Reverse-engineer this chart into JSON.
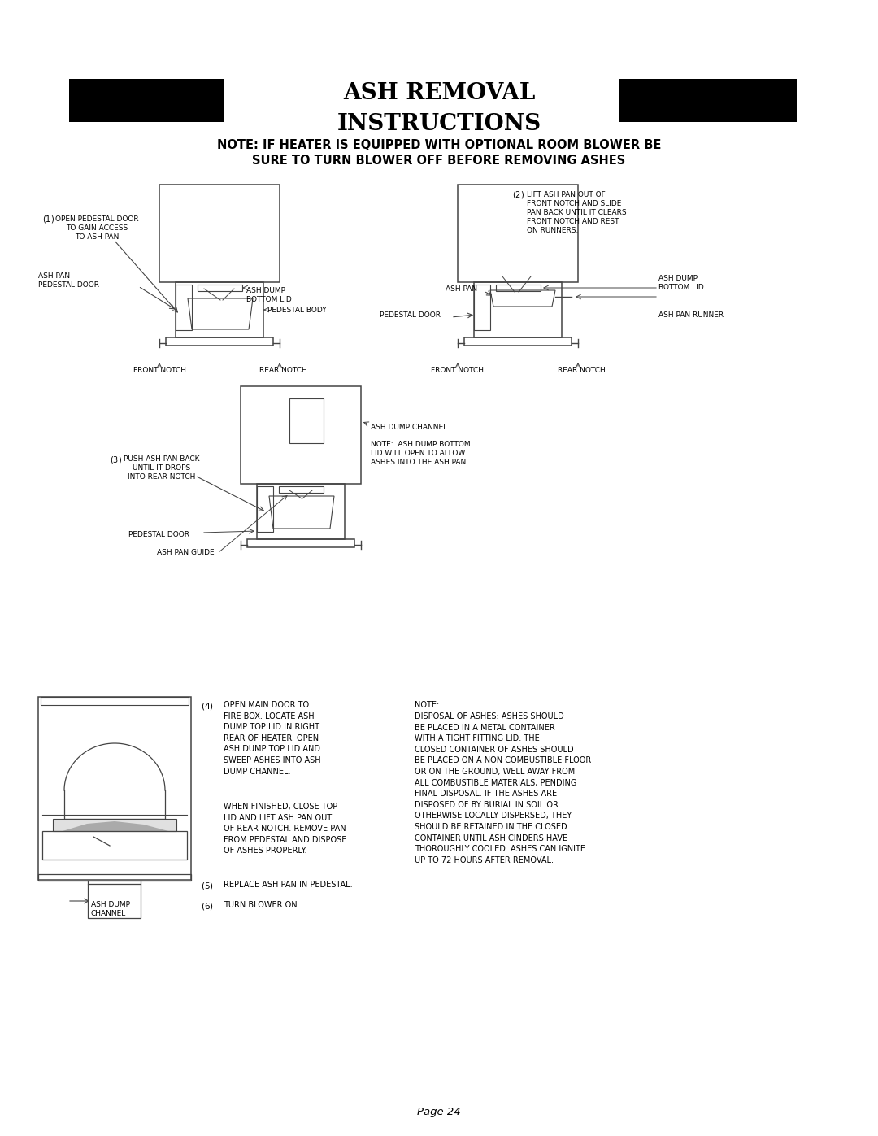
{
  "bg_color": "#ffffff",
  "page_width": 10.8,
  "page_height": 13.97,
  "title_line1": "ASH REMOVAL",
  "title_line2": "INSTRUCTIONS",
  "subtitle": "NOTE: IF HEATER IS EQUIPPED WITH OPTIONAL ROOM BLOWER BE\nSURE TO TURN BLOWER OFF BEFORE REMOVING ASHES",
  "page_number": "Page 24",
  "black_rect_color": "#000000",
  "diagram_line_color": "#444444",
  "text_color": "#000000",
  "label_fontsize": 6.5,
  "title_fontsize": 20,
  "subtitle_fontsize": 10.5,
  "note_fontsize": 7.0
}
